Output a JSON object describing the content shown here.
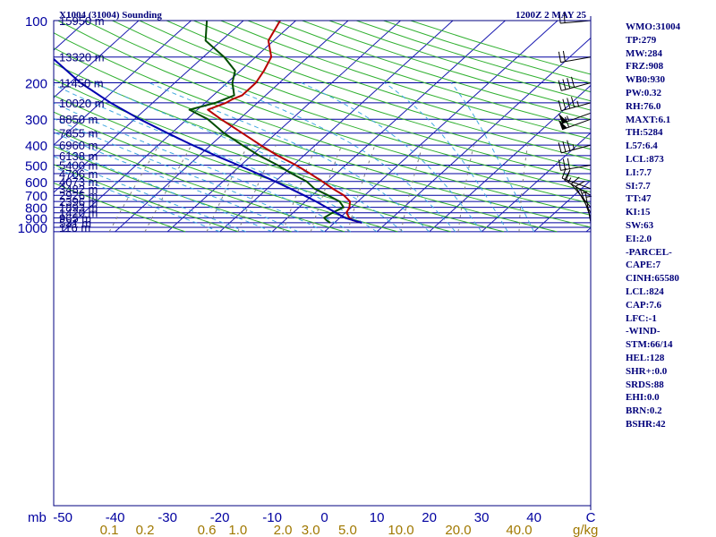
{
  "header": {
    "station": "X1004 (31004) Sounding",
    "time": "1200Z  2 MAY 25"
  },
  "units": {
    "pressure": "mb",
    "mixing_ratio": "g/kg"
  },
  "colors": {
    "isobar": "#0000a0",
    "isotherm": "#1818b0",
    "dry_adiabat": "#30b030",
    "moist_adiabat": "#40a8e0",
    "mixing_ratio": "#808080",
    "temperature": "#b80000",
    "dewpoint": "#004d00",
    "parcel": "#0000b0",
    "text": "#00007a",
    "mixing_ratio_label": "#a07800",
    "wind_barb": "#000000"
  },
  "axes": {
    "pressure_ticks": [
      "100",
      "200",
      "300",
      "400",
      "500",
      "600",
      "700",
      "800",
      "900",
      "1000"
    ],
    "temperature_ticks": [
      "-50",
      "-40",
      "-30",
      "-20",
      "-10",
      "0",
      "10",
      "20",
      "30",
      "40",
      "C"
    ],
    "mixing_ratio_ticks": [
      "0.1",
      "0.2",
      "0.6",
      "1.0",
      "2.0",
      "3.0",
      "5.0",
      "10.0",
      "20.0",
      "40.0"
    ],
    "height_labels": [
      {
        "p": 100,
        "text": "15950 m"
      },
      {
        "p": 150,
        "text": "13320 m"
      },
      {
        "p": 200,
        "text": "11450 m"
      },
      {
        "p": 250,
        "text": "10020 m"
      },
      {
        "p": 300,
        "text": "8850 m"
      },
      {
        "p": 350,
        "text": "7855 m"
      },
      {
        "p": 400,
        "text": "6960 m"
      },
      {
        "p": 450,
        "text": "6138 m"
      },
      {
        "p": 500,
        "text": "5400 m"
      },
      {
        "p": 550,
        "text": "4706 m"
      },
      {
        "p": 600,
        "text": "4073 m"
      },
      {
        "p": 650,
        "text": "3482 m"
      },
      {
        "p": 700,
        "text": "2926 m"
      },
      {
        "p": 750,
        "text": "2396 m"
      },
      {
        "p": 800,
        "text": "1893 m"
      },
      {
        "p": 850,
        "text": "1420 m"
      },
      {
        "p": 900,
        "text": "965 m"
      },
      {
        "p": 950,
        "text": "531 m"
      },
      {
        "p": 1000,
        "text": "116 m"
      }
    ]
  },
  "indices": [
    "WMO:31004",
    "TP:279",
    "MW:284",
    "FRZ:908",
    "WB0:930",
    "PW:0.32",
    "RH:76.0",
    "MAXT:6.1",
    "TH:5284",
    "L57:6.4",
    "LCL:873",
    "LI:7.7",
    "SI:7.7",
    "TT:47",
    "KI:15",
    "SW:63",
    "EI:2.0",
    "-PARCEL-",
    "CAPE:7",
    "CINH:65580",
    "LCL:824",
    "CAP:7.6",
    "LFC:-1",
    "-WIND-",
    "STM:66/14",
    "HEL:128",
    "SHR+:0.0",
    "SRDS:88",
    "EHI:0.0",
    "BRN:0.2",
    "BSHR:42"
  ],
  "chart_data": {
    "type": "line",
    "diagram": "skew-T log-P",
    "y_axis": {
      "scale": "log",
      "units": "mb",
      "range": [
        1050,
        100
      ]
    },
    "x_axis": {
      "units": "C",
      "range": [
        -50,
        50
      ]
    },
    "series": [
      {
        "name": "Temperature",
        "points": [
          {
            "p": 950,
            "t": 5.2
          },
          {
            "p": 925,
            "t": 3.0
          },
          {
            "p": 900,
            "t": 1.8
          },
          {
            "p": 850,
            "t": 0.2
          },
          {
            "p": 800,
            "t": -0.4
          },
          {
            "p": 750,
            "t": -1.5
          },
          {
            "p": 700,
            "t": -4.0
          },
          {
            "p": 650,
            "t": -7.5
          },
          {
            "p": 600,
            "t": -11.0
          },
          {
            "p": 550,
            "t": -15.0
          },
          {
            "p": 500,
            "t": -19.5
          },
          {
            "p": 450,
            "t": -25.0
          },
          {
            "p": 400,
            "t": -30.5
          },
          {
            "p": 350,
            "t": -36.5
          },
          {
            "p": 300,
            "t": -43.5
          },
          {
            "p": 270,
            "t": -48.0
          },
          {
            "p": 250,
            "t": -46.0
          },
          {
            "p": 240,
            "t": -45.5
          },
          {
            "p": 230,
            "t": -44.5
          },
          {
            "p": 200,
            "t": -44.5
          },
          {
            "p": 175,
            "t": -45.5
          },
          {
            "p": 150,
            "t": -47.0
          },
          {
            "p": 125,
            "t": -51.0
          },
          {
            "p": 100,
            "t": -53.0
          }
        ]
      },
      {
        "name": "Dewpoint",
        "points": [
          {
            "p": 950,
            "t": -0.8
          },
          {
            "p": 925,
            "t": -2.0
          },
          {
            "p": 900,
            "t": -3.0
          },
          {
            "p": 850,
            "t": -2.5
          },
          {
            "p": 800,
            "t": -1.5
          },
          {
            "p": 750,
            "t": -3.5
          },
          {
            "p": 700,
            "t": -7.0
          },
          {
            "p": 650,
            "t": -11.0
          },
          {
            "p": 600,
            "t": -14.0
          },
          {
            "p": 550,
            "t": -18.5
          },
          {
            "p": 500,
            "t": -23.0
          },
          {
            "p": 450,
            "t": -28.5
          },
          {
            "p": 400,
            "t": -34.0
          },
          {
            "p": 350,
            "t": -40.0
          },
          {
            "p": 300,
            "t": -46.0
          },
          {
            "p": 270,
            "t": -51.5
          },
          {
            "p": 250,
            "t": -48.0
          },
          {
            "p": 230,
            "t": -46.0
          },
          {
            "p": 200,
            "t": -49.0
          },
          {
            "p": 175,
            "t": -51.0
          },
          {
            "p": 150,
            "t": -56.0
          },
          {
            "p": 125,
            "t": -63.0
          },
          {
            "p": 100,
            "t": -67.0
          }
        ]
      },
      {
        "name": "Parcel",
        "points": [
          {
            "p": 950,
            "t": 5.2
          },
          {
            "p": 900,
            "t": 1.0
          },
          {
            "p": 850,
            "t": -1.8
          },
          {
            "p": 800,
            "t": -4.8
          },
          {
            "p": 750,
            "t": -8.0
          },
          {
            "p": 700,
            "t": -11.6
          },
          {
            "p": 650,
            "t": -15.6
          },
          {
            "p": 600,
            "t": -20.0
          },
          {
            "p": 550,
            "t": -25.0
          },
          {
            "p": 500,
            "t": -30.5
          },
          {
            "p": 450,
            "t": -36.8
          },
          {
            "p": 400,
            "t": -43.5
          },
          {
            "p": 350,
            "t": -50.8
          },
          {
            "p": 300,
            "t": -59.0
          },
          {
            "p": 250,
            "t": -68.0
          },
          {
            "p": 200,
            "t": -78.0
          },
          {
            "p": 150,
            "t": -89.0
          },
          {
            "p": 125,
            "t": -95.0
          }
        ]
      }
    ],
    "wind_barbs": [
      {
        "p": 100,
        "dir": 265,
        "kt": 20
      },
      {
        "p": 150,
        "dir": 260,
        "kt": 20
      },
      {
        "p": 200,
        "dir": 255,
        "kt": 40
      },
      {
        "p": 250,
        "dir": 255,
        "kt": 45
      },
      {
        "p": 280,
        "dir": 250,
        "kt": 55
      },
      {
        "p": 300,
        "dir": 250,
        "kt": 60
      },
      {
        "p": 400,
        "dir": 255,
        "kt": 35
      },
      {
        "p": 500,
        "dir": 260,
        "kt": 30
      },
      {
        "p": 650,
        "dir": 290,
        "kt": 20
      },
      {
        "p": 700,
        "dir": 300,
        "kt": 15
      },
      {
        "p": 800,
        "dir": 320,
        "kt": 10
      },
      {
        "p": 850,
        "dir": 330,
        "kt": 10
      },
      {
        "p": 900,
        "dir": 340,
        "kt": 5
      },
      {
        "p": 950,
        "dir": 350,
        "kt": 5
      }
    ]
  }
}
